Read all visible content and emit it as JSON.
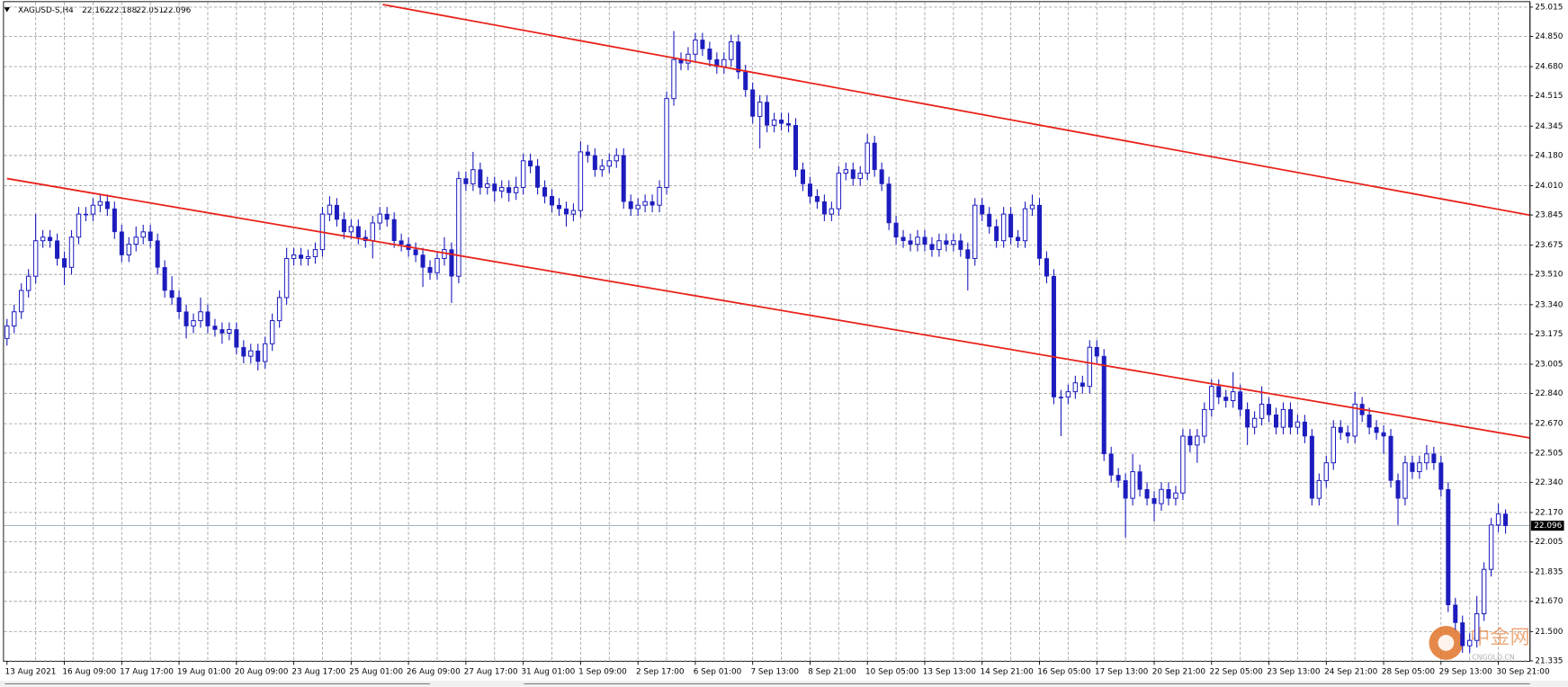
{
  "chart_data": {
    "type": "candlestick",
    "symbol": "XAGUSD-S,H4",
    "categories": [
      "13 Aug 2021",
      null,
      null,
      null,
      null,
      null,
      null,
      null,
      "16 Aug 09:00",
      null,
      null,
      null,
      null,
      null,
      null,
      null,
      "17 Aug 17:00",
      null,
      null,
      null,
      null,
      null,
      null,
      null,
      "19 Aug 01:00",
      null,
      null,
      null,
      null,
      null,
      null,
      null,
      "20 Aug 09:00",
      null,
      null,
      null,
      null,
      null,
      null,
      null,
      "23 Aug 17:00",
      null,
      null,
      null,
      null,
      null,
      null,
      null,
      "25 Aug 01:00",
      null,
      null,
      null,
      null,
      null,
      null,
      null,
      "26 Aug 09:00",
      null,
      null,
      null,
      null,
      null,
      null,
      null,
      "27 Aug 17:00",
      null,
      null,
      null,
      null,
      null,
      null,
      null,
      "31 Aug 01:00",
      null,
      null,
      null,
      null,
      null,
      null,
      null,
      "1 Sep 09:00",
      null,
      null,
      null,
      null,
      null,
      null,
      null,
      "2 Sep 17:00",
      null,
      null,
      null,
      null,
      null,
      null,
      null,
      "6 Sep 01:00",
      null,
      null,
      null,
      null,
      null,
      null,
      null,
      "7 Sep 13:00",
      null,
      null,
      null,
      null,
      null,
      null,
      null,
      "8 Sep 21:00",
      null,
      null,
      null,
      null,
      null,
      null,
      null,
      "10 Sep 05:00",
      null,
      null,
      null,
      null,
      null,
      null,
      null,
      "13 Sep 13:00",
      null,
      null,
      null,
      null,
      null,
      null,
      null,
      "14 Sep 21:00",
      null,
      null,
      null,
      null,
      null,
      null,
      null,
      "16 Sep 05:00",
      null,
      null,
      null,
      null,
      null,
      null,
      null,
      "17 Sep 13:00",
      null,
      null,
      null,
      null,
      null,
      null,
      null,
      "20 Sep 21:00",
      null,
      null,
      null,
      null,
      null,
      null,
      null,
      "22 Sep 05:00",
      null,
      null,
      null,
      null,
      null,
      null,
      null,
      "23 Sep 13:00",
      null,
      null,
      null,
      null,
      null,
      null,
      null,
      "24 Sep 21:00",
      null,
      null,
      null,
      null,
      null,
      null,
      null,
      "28 Sep 05:00",
      null,
      null,
      null,
      null,
      null,
      null,
      null,
      "29 Sep 13:00",
      null,
      null,
      null,
      null,
      null,
      null,
      null,
      "30 Sep 21:00",
      null
    ],
    "candles": {
      "open": [
        23.15,
        23.22,
        23.3,
        23.42,
        23.5,
        23.7,
        23.72,
        23.7,
        23.6,
        23.55,
        23.72,
        23.85,
        23.85,
        23.9,
        23.92,
        23.88,
        23.75,
        23.62,
        23.68,
        23.72,
        23.75,
        23.7,
        23.55,
        23.42,
        23.38,
        23.3,
        23.22,
        23.25,
        23.3,
        23.22,
        23.2,
        23.18,
        23.2,
        23.1,
        23.05,
        23.08,
        23.02,
        23.12,
        23.25,
        23.38,
        23.6,
        23.62,
        23.6,
        23.61,
        23.65,
        23.85,
        23.9,
        23.82,
        23.75,
        23.78,
        23.72,
        23.7,
        23.8,
        23.85,
        23.82,
        23.7,
        23.68,
        23.65,
        23.62,
        23.55,
        23.52,
        23.6,
        23.65,
        23.5,
        24.05,
        24.02,
        24.1,
        24.0,
        24.02,
        23.98,
        24.0,
        23.97,
        24.0,
        24.15,
        24.12,
        24.0,
        23.95,
        23.9,
        23.88,
        23.85,
        23.87,
        24.2,
        24.18,
        24.1,
        24.12,
        24.15,
        24.18,
        23.92,
        23.88,
        23.9,
        23.92,
        23.9,
        24.0,
        24.5,
        24.72,
        24.7,
        24.75,
        24.83,
        24.78,
        24.72,
        24.68,
        24.72,
        24.82,
        24.65,
        24.55,
        24.4,
        24.48,
        24.35,
        24.38,
        24.36,
        24.35,
        24.1,
        24.02,
        23.95,
        23.92,
        23.85,
        23.88,
        24.08,
        24.1,
        24.05,
        24.08,
        24.25,
        24.1,
        24.02,
        23.8,
        23.72,
        23.7,
        23.68,
        23.72,
        23.68,
        23.65,
        23.7,
        23.68,
        23.7,
        23.65,
        23.6,
        23.9,
        23.85,
        23.78,
        23.7,
        23.85,
        23.72,
        23.7,
        23.88,
        23.9,
        23.6,
        23.5,
        22.82,
        22.82,
        22.85,
        22.9,
        22.88,
        23.1,
        23.05,
        22.5,
        22.38,
        22.35,
        22.25,
        22.4,
        22.3,
        22.25,
        22.22,
        22.3,
        22.25,
        22.28,
        22.6,
        22.55,
        22.6,
        22.75,
        22.88,
        22.82,
        22.8,
        22.85,
        22.75,
        22.65,
        22.7,
        22.78,
        22.72,
        22.65,
        22.75,
        22.65,
        22.68,
        22.6,
        22.25,
        22.35,
        22.45,
        22.65,
        22.62,
        22.6,
        22.78,
        22.72,
        22.65,
        22.62,
        22.6,
        22.35,
        22.25,
        22.45,
        22.4,
        22.45,
        22.5,
        22.45,
        22.3,
        21.65,
        21.55,
        21.42,
        21.45,
        21.6,
        21.85,
        22.1,
        22.162
      ],
      "high": [
        23.26,
        23.34,
        23.46,
        23.54,
        23.85,
        23.76,
        23.76,
        23.74,
        23.64,
        23.76,
        23.89,
        23.89,
        23.94,
        23.96,
        23.96,
        23.92,
        23.79,
        23.72,
        23.78,
        23.79,
        23.79,
        23.74,
        23.59,
        23.5,
        23.42,
        23.34,
        23.29,
        23.38,
        23.34,
        23.26,
        23.24,
        23.24,
        23.24,
        23.14,
        23.12,
        23.12,
        23.16,
        23.29,
        23.42,
        23.66,
        23.66,
        23.66,
        23.65,
        23.69,
        23.89,
        23.95,
        23.94,
        23.86,
        23.82,
        23.82,
        23.76,
        23.84,
        23.89,
        23.89,
        23.86,
        23.74,
        23.72,
        23.69,
        23.66,
        23.59,
        23.64,
        23.72,
        23.69,
        24.09,
        24.09,
        24.2,
        24.14,
        24.06,
        24.06,
        24.04,
        24.04,
        24.06,
        24.19,
        24.19,
        24.16,
        24.04,
        23.99,
        23.94,
        23.92,
        23.91,
        24.26,
        24.24,
        24.22,
        24.16,
        24.19,
        24.22,
        24.22,
        23.96,
        23.94,
        23.96,
        23.96,
        24.04,
        24.54,
        24.88,
        24.76,
        24.79,
        24.87,
        24.87,
        24.82,
        24.76,
        24.76,
        24.86,
        24.86,
        24.69,
        24.59,
        24.52,
        24.52,
        24.42,
        24.42,
        24.42,
        24.39,
        24.14,
        24.06,
        23.99,
        23.96,
        23.92,
        24.12,
        24.14,
        24.14,
        24.12,
        24.3,
        24.29,
        24.14,
        24.06,
        23.84,
        23.76,
        23.74,
        23.76,
        23.76,
        23.72,
        23.74,
        23.74,
        23.74,
        23.74,
        23.69,
        23.94,
        23.94,
        23.89,
        23.82,
        23.89,
        23.89,
        23.76,
        23.92,
        23.96,
        23.94,
        23.64,
        23.54,
        22.86,
        22.89,
        22.94,
        22.94,
        23.14,
        23.14,
        23.09,
        22.54,
        22.42,
        22.39,
        22.5,
        22.44,
        22.34,
        22.29,
        22.34,
        22.34,
        22.32,
        22.64,
        22.64,
        22.64,
        22.79,
        22.92,
        22.92,
        22.86,
        22.96,
        22.89,
        22.79,
        22.74,
        22.88,
        22.82,
        22.76,
        22.79,
        22.79,
        22.72,
        22.72,
        22.64,
        22.39,
        22.49,
        22.69,
        22.69,
        22.66,
        22.85,
        22.82,
        22.76,
        22.69,
        22.66,
        22.64,
        22.39,
        22.49,
        22.49,
        22.49,
        22.55,
        22.54,
        22.49,
        22.34,
        21.69,
        21.59,
        21.49,
        21.7,
        21.89,
        22.14,
        22.22,
        22.188
      ],
      "low": [
        23.11,
        23.18,
        23.26,
        23.38,
        23.46,
        23.66,
        23.66,
        23.56,
        23.45,
        23.51,
        23.68,
        23.81,
        23.81,
        23.86,
        23.84,
        23.71,
        23.58,
        23.58,
        23.64,
        23.68,
        23.66,
        23.51,
        23.38,
        23.34,
        23.26,
        23.15,
        23.18,
        23.21,
        23.18,
        23.16,
        23.12,
        23.14,
        23.06,
        23.01,
        23.01,
        22.97,
        22.98,
        23.08,
        23.21,
        23.34,
        23.56,
        23.56,
        23.56,
        23.57,
        23.61,
        23.81,
        23.78,
        23.71,
        23.71,
        23.68,
        23.66,
        23.6,
        23.76,
        23.78,
        23.66,
        23.64,
        23.61,
        23.58,
        23.44,
        23.48,
        23.48,
        23.56,
        23.35,
        23.46,
        23.98,
        23.98,
        23.96,
        23.96,
        23.92,
        23.94,
        23.92,
        23.93,
        23.96,
        24.08,
        23.96,
        23.91,
        23.86,
        23.84,
        23.78,
        23.81,
        23.83,
        24.14,
        24.06,
        24.06,
        24.08,
        24.11,
        23.88,
        23.84,
        23.84,
        23.86,
        23.86,
        23.86,
        23.96,
        24.46,
        24.66,
        24.66,
        24.71,
        24.74,
        24.68,
        24.64,
        24.64,
        24.68,
        24.61,
        24.51,
        24.36,
        24.22,
        24.31,
        24.31,
        24.32,
        24.31,
        24.06,
        23.98,
        23.91,
        23.88,
        23.81,
        23.81,
        23.84,
        24.04,
        24.01,
        24.01,
        24.04,
        24.06,
        23.98,
        23.76,
        23.68,
        23.66,
        23.64,
        23.64,
        23.64,
        23.61,
        23.61,
        23.64,
        23.64,
        23.61,
        23.42,
        23.56,
        23.81,
        23.74,
        23.66,
        23.66,
        23.68,
        23.66,
        23.66,
        23.84,
        23.56,
        23.46,
        22.78,
        22.6,
        22.78,
        22.81,
        22.84,
        22.84,
        23.01,
        22.46,
        22.34,
        22.31,
        22.03,
        22.21,
        22.26,
        22.21,
        22.12,
        22.18,
        22.21,
        22.21,
        22.24,
        22.51,
        22.45,
        22.56,
        22.71,
        22.78,
        22.76,
        22.76,
        22.71,
        22.55,
        22.61,
        22.66,
        22.68,
        22.61,
        22.61,
        22.61,
        22.61,
        22.56,
        22.21,
        22.21,
        22.31,
        22.41,
        22.58,
        22.56,
        22.56,
        22.68,
        22.61,
        22.58,
        22.5,
        22.31,
        22.1,
        22.21,
        22.36,
        22.36,
        22.41,
        22.41,
        22.26,
        21.61,
        21.51,
        21.38,
        21.38,
        21.41,
        21.56,
        21.81,
        22.06,
        22.051
      ],
      "close": [
        23.22,
        23.3,
        23.42,
        23.5,
        23.7,
        23.72,
        23.7,
        23.6,
        23.55,
        23.72,
        23.85,
        23.85,
        23.9,
        23.92,
        23.88,
        23.75,
        23.62,
        23.68,
        23.72,
        23.75,
        23.7,
        23.55,
        23.42,
        23.38,
        23.3,
        23.22,
        23.25,
        23.3,
        23.22,
        23.2,
        23.18,
        23.2,
        23.1,
        23.05,
        23.08,
        23.02,
        23.12,
        23.25,
        23.38,
        23.6,
        23.62,
        23.6,
        23.61,
        23.65,
        23.85,
        23.9,
        23.82,
        23.75,
        23.78,
        23.72,
        23.7,
        23.8,
        23.85,
        23.82,
        23.7,
        23.68,
        23.65,
        23.62,
        23.55,
        23.52,
        23.6,
        23.65,
        23.5,
        24.05,
        24.02,
        24.1,
        24.0,
        24.02,
        23.98,
        24.0,
        23.97,
        24.0,
        24.15,
        24.12,
        24.0,
        23.95,
        23.9,
        23.88,
        23.85,
        23.87,
        24.2,
        24.18,
        24.1,
        24.12,
        24.15,
        24.18,
        23.92,
        23.88,
        23.9,
        23.92,
        23.9,
        24.0,
        24.5,
        24.72,
        24.7,
        24.75,
        24.83,
        24.78,
        24.72,
        24.68,
        24.72,
        24.82,
        24.65,
        24.55,
        24.4,
        24.48,
        24.35,
        24.38,
        24.36,
        24.35,
        24.1,
        24.02,
        23.95,
        23.92,
        23.85,
        23.88,
        24.08,
        24.1,
        24.05,
        24.08,
        24.25,
        24.1,
        24.02,
        23.8,
        23.72,
        23.7,
        23.68,
        23.72,
        23.68,
        23.65,
        23.7,
        23.68,
        23.7,
        23.65,
        23.6,
        23.9,
        23.85,
        23.78,
        23.7,
        23.85,
        23.72,
        23.7,
        23.88,
        23.9,
        23.6,
        23.5,
        22.82,
        22.82,
        22.85,
        22.9,
        22.88,
        23.1,
        23.05,
        22.5,
        22.38,
        22.35,
        22.25,
        22.4,
        22.3,
        22.25,
        22.22,
        22.3,
        22.25,
        22.28,
        22.6,
        22.55,
        22.6,
        22.75,
        22.88,
        22.82,
        22.8,
        22.85,
        22.75,
        22.65,
        22.7,
        22.78,
        22.72,
        22.65,
        22.75,
        22.65,
        22.68,
        22.6,
        22.25,
        22.35,
        22.45,
        22.65,
        22.62,
        22.6,
        22.78,
        22.72,
        22.65,
        22.62,
        22.6,
        22.35,
        22.25,
        22.45,
        22.4,
        22.45,
        22.5,
        22.45,
        22.3,
        21.65,
        21.55,
        21.42,
        21.45,
        21.6,
        21.85,
        22.1,
        22.162,
        22.096
      ]
    },
    "bull_color": "#ffffff",
    "bear_color": "#1c1cbe",
    "wick_color": "#1c1cbe",
    "trendlines": [
      {
        "color": "#e8221a",
        "points": [
          [
            52.4,
            25.03
          ],
          [
            212.4,
            23.844
          ]
        ]
      },
      {
        "color": "#e8221a",
        "points": [
          [
            0,
            24.05
          ],
          [
            212.4,
            22.59
          ]
        ]
      }
    ],
    "ylim": [
      21.335,
      25.043
    ],
    "yticks": [
      25.015,
      {
        "value": 24.85,
        "label": "24.850"
      },
      {
        "value": 24.68,
        "label": "24.680"
      },
      24.515,
      24.345,
      {
        "value": 24.18,
        "label": "24.180"
      },
      {
        "value": 24.01,
        "label": "24.010"
      },
      23.845,
      23.675,
      {
        "value": 23.51,
        "label": "23.510"
      },
      {
        "value": 23.34,
        "label": "23.340"
      },
      23.175,
      23.005,
      {
        "value": 22.84,
        "label": "22.840"
      },
      {
        "value": 22.67,
        "label": "22.670"
      },
      22.505,
      {
        "value": 22.34,
        "label": "22.340"
      },
      {
        "value": 22.17,
        "label": "22.170"
      },
      22.005,
      21.835,
      {
        "value": 21.67,
        "label": "21.670"
      },
      {
        "value": 21.5,
        "label": "21.500"
      },
      21.335
    ],
    "grid": true,
    "watermark": {
      "text": "中金网",
      "subtext": "CNGOLD.CN"
    }
  }
}
